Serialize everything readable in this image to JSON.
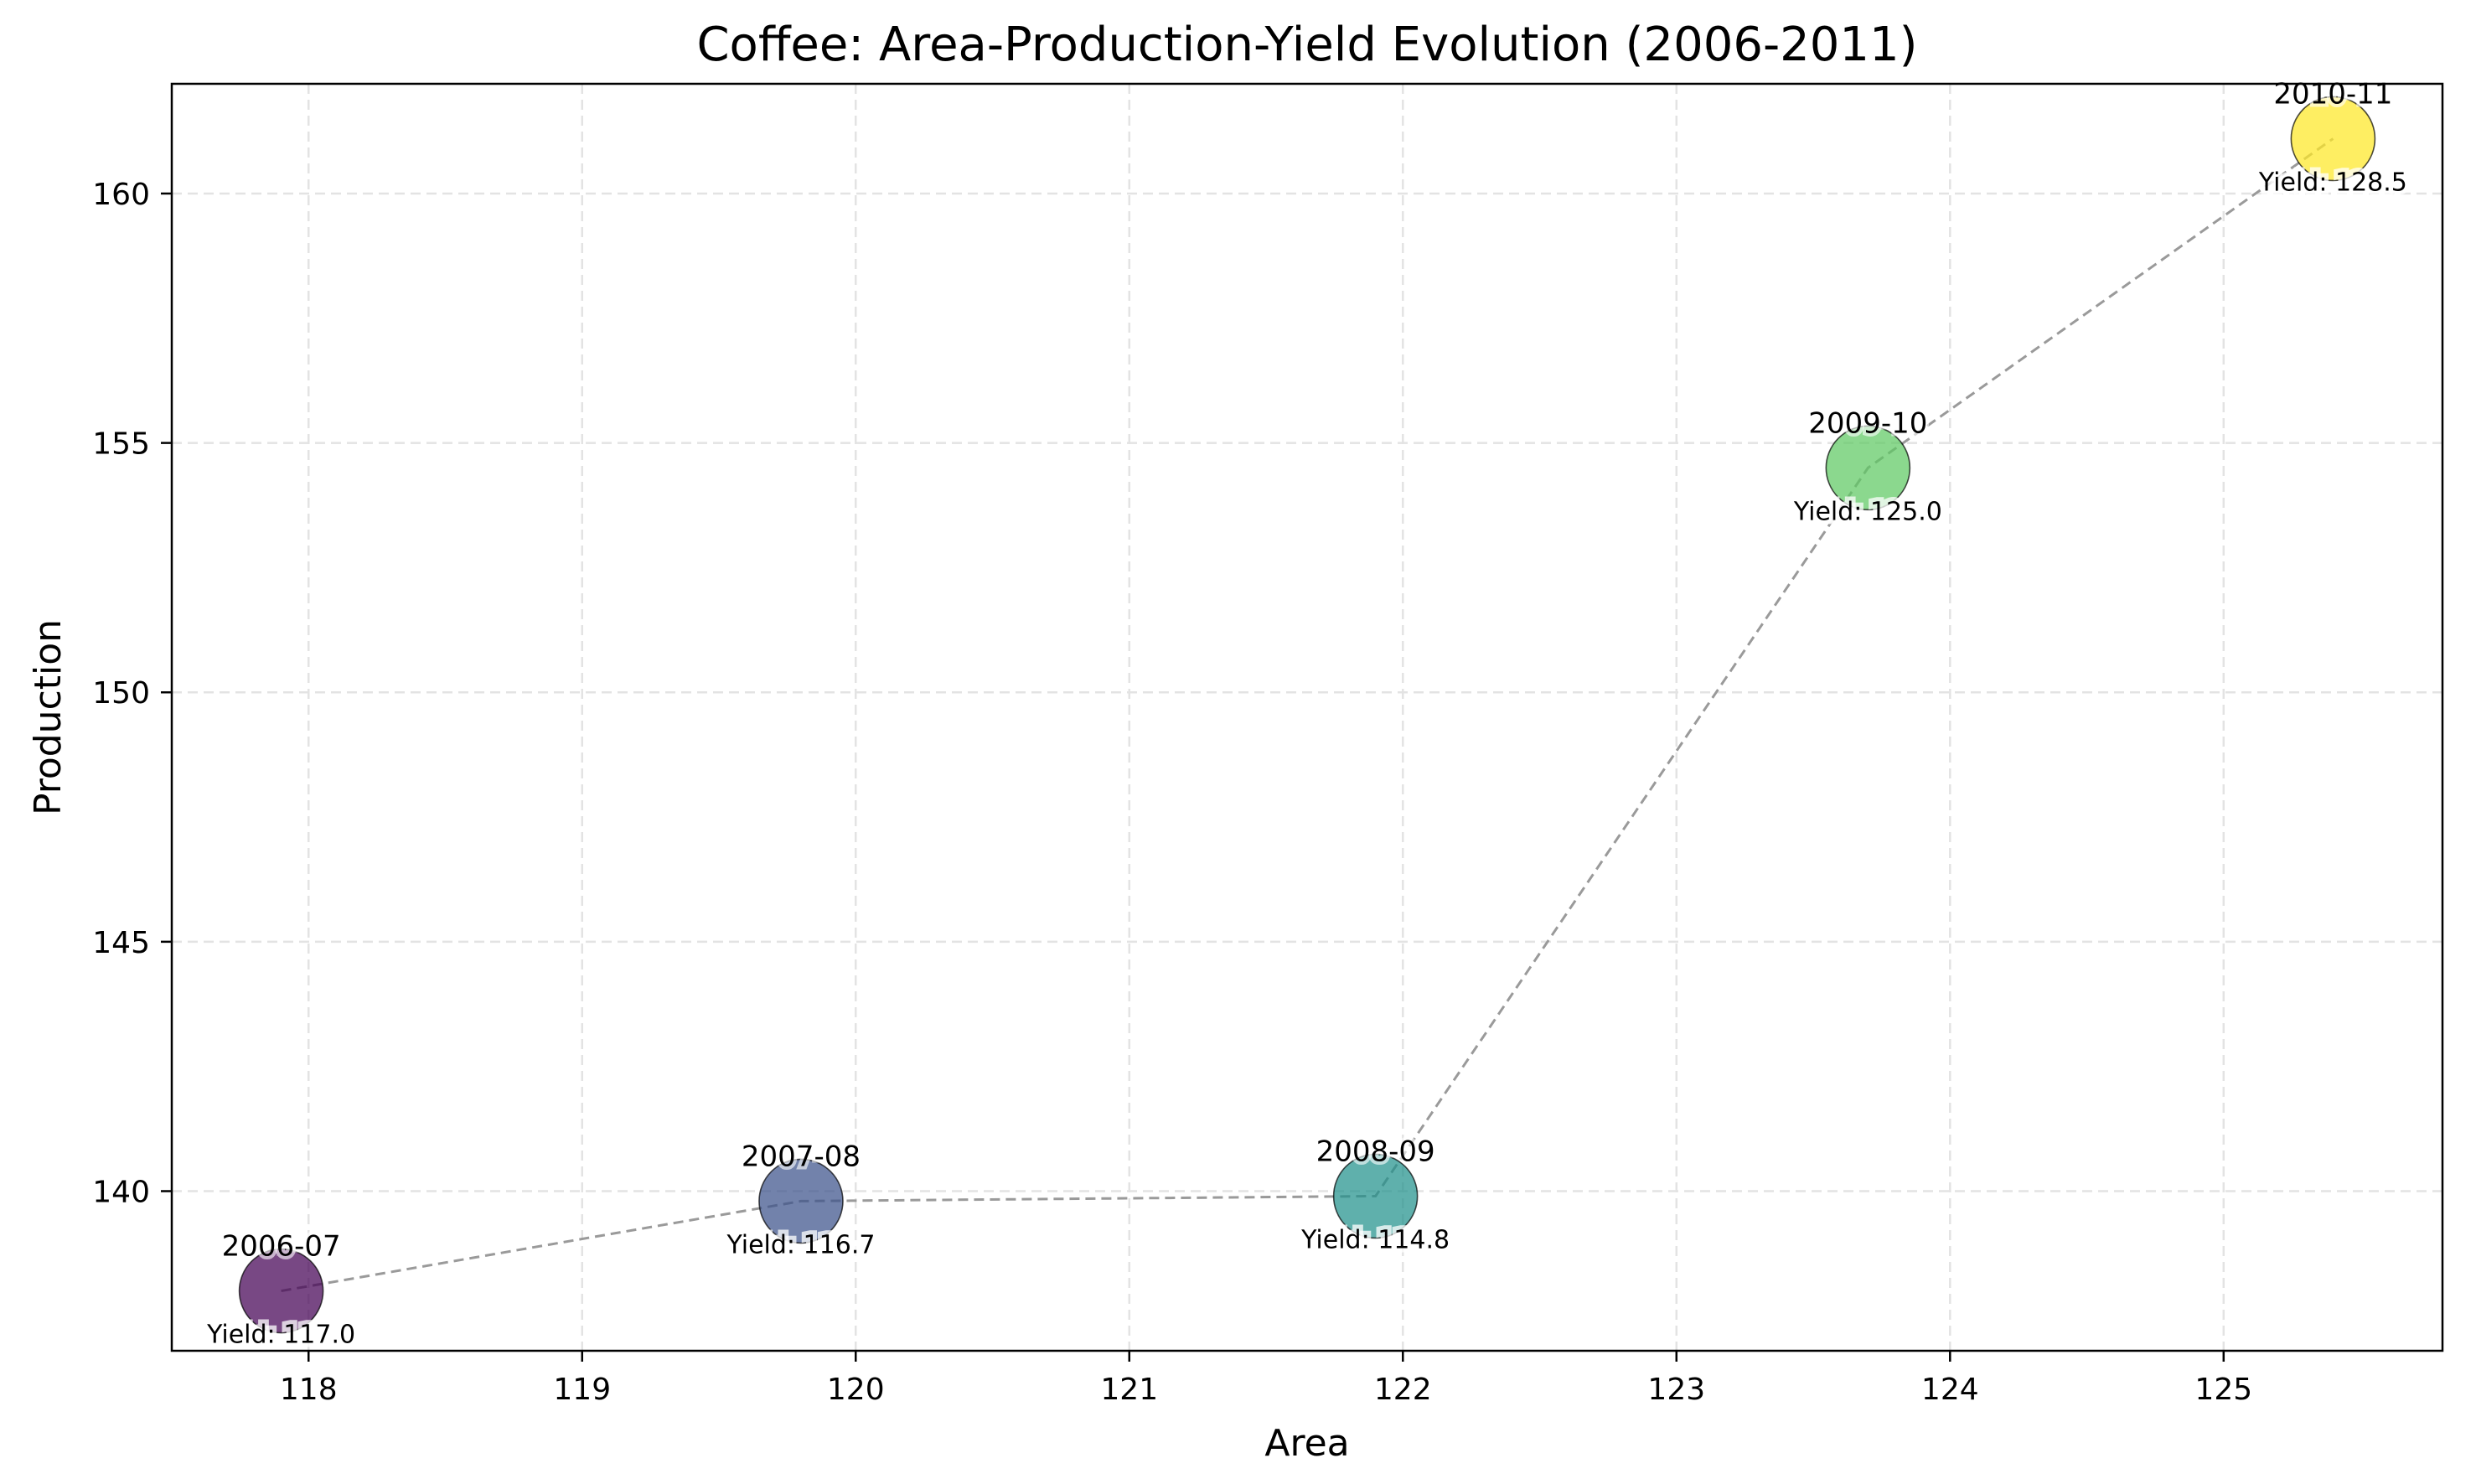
{
  "chart_data": {
    "type": "scatter",
    "title": "Coffee: Area-Production-Yield Evolution (2006-2011)",
    "xlabel": "Area",
    "ylabel": "Production",
    "xlim": [
      117.5,
      125.8
    ],
    "ylim": [
      136.8,
      162.2
    ],
    "xticks": [
      118,
      119,
      120,
      121,
      122,
      123,
      124,
      125
    ],
    "yticks": [
      140,
      145,
      150,
      155,
      160
    ],
    "grid": true,
    "connector": "dashed",
    "points": [
      {
        "label": "2006-07",
        "x": 117.9,
        "y": 138.0,
        "yield": 117.0,
        "yield_text": "Yield: 117.0",
        "color": "#440154"
      },
      {
        "label": "2007-08",
        "x": 119.8,
        "y": 139.8,
        "yield": 116.7,
        "yield_text": "Yield: 116.7",
        "color": "#3b528b"
      },
      {
        "label": "2008-09",
        "x": 121.9,
        "y": 139.9,
        "yield": 114.8,
        "yield_text": "Yield: 114.8",
        "color": "#21918c"
      },
      {
        "label": "2009-10",
        "x": 123.7,
        "y": 154.5,
        "yield": 125.0,
        "yield_text": "Yield: 125.0",
        "color": "#5ec962"
      },
      {
        "label": "2010-11",
        "x": 125.4,
        "y": 161.1,
        "yield": 128.5,
        "yield_text": "Yield: 128.5",
        "color": "#fde725"
      }
    ]
  }
}
